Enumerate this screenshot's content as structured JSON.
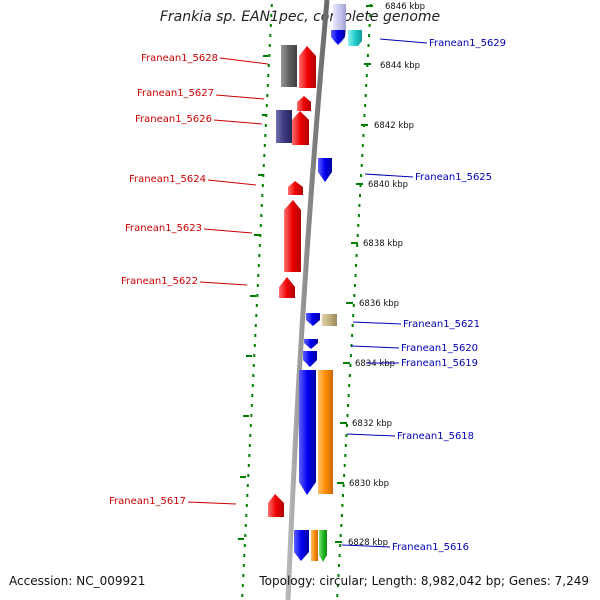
{
  "title": "Frankia sp. EAN1pec, complete genome",
  "accession": "Accession: NC_009921",
  "summary": "Topology: circular; Length: 8,982,042 bp; Genes: 7,249",
  "scale_labels": [
    "6846 kbp",
    "6844 kbp",
    "6842 kbp",
    "6840 kbp",
    "6838 kbp",
    "6836 kbp",
    "6834 kbp",
    "6832 kbp",
    "6830 kbp",
    "6828 kbp"
  ],
  "left_labels": [
    "Franean1_5628",
    "Franean1_5627",
    "Franean1_5626",
    "Franean1_5624",
    "Franean1_5623",
    "Franean1_5622",
    "Franean1_5617"
  ],
  "right_labels": [
    "Franean1_5629",
    "Franean1_5625",
    "Franean1_5621",
    "Franean1_5620",
    "Franean1_5619",
    "Franean1_5618",
    "Franean1_5616"
  ],
  "colors": {
    "left_label": "#cc0000",
    "right_label": "#0000b4",
    "red_gene": "#ee0000",
    "blue_gene": "#0000ee",
    "orange_gene": "#ff8c00",
    "green_gene": "#22bb22",
    "cyan_gene": "#22cccc",
    "khaki_gene": "#c2b280",
    "dark_gray_gene": "#606060",
    "navy_gene": "#3a3a80",
    "lavender_gene": "#c8c8f0",
    "backbone": "#909090",
    "tick": "#008000"
  }
}
